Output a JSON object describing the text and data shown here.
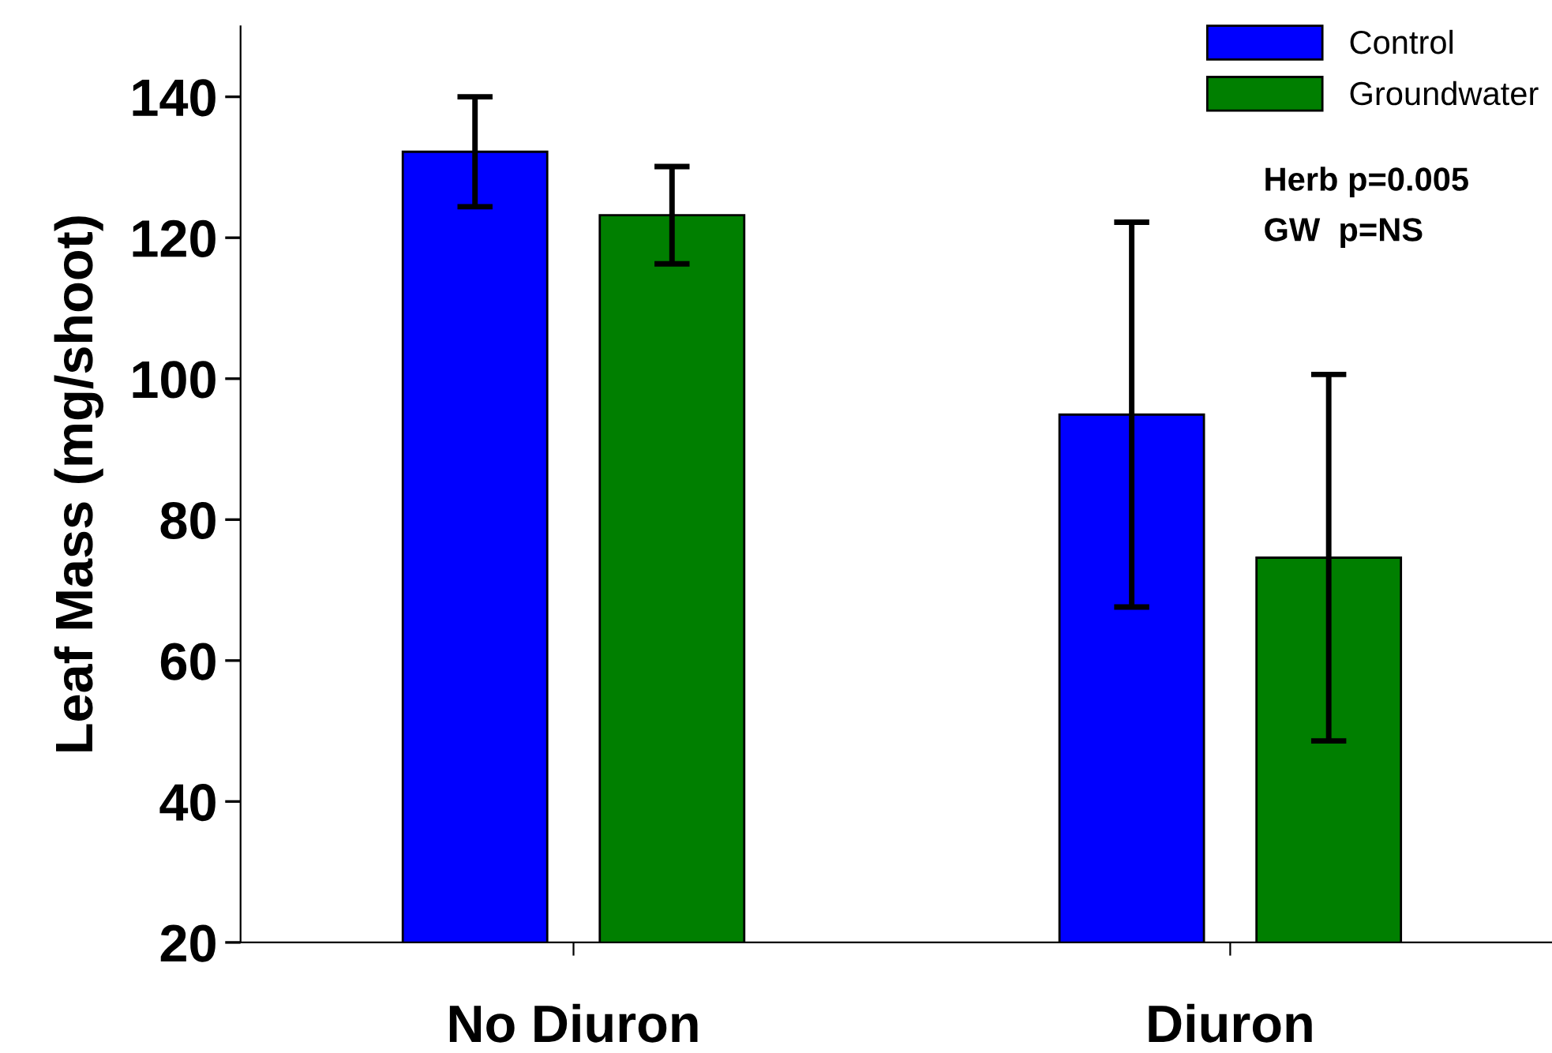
{
  "chart_data": {
    "type": "bar",
    "categories": [
      "No Diuron",
      "Diuron"
    ],
    "series": [
      {
        "name": "Control",
        "color": "#0000ff",
        "values": [
          132.2,
          94.9
        ],
        "errors": [
          7.8,
          27.3
        ]
      },
      {
        "name": "Groundwater",
        "color": "#007f00",
        "values": [
          123.2,
          74.6
        ],
        "errors": [
          6.9,
          26.0
        ]
      }
    ],
    "ylabel": "Leaf Mass (mg/shoot)",
    "ylim": [
      20,
      150
    ],
    "yticks": [
      20,
      40,
      60,
      80,
      100,
      120,
      140
    ],
    "annotations": [
      "Herb p=0.005",
      "GW  p=NS"
    ],
    "legend": "top right",
    "grid": false
  }
}
